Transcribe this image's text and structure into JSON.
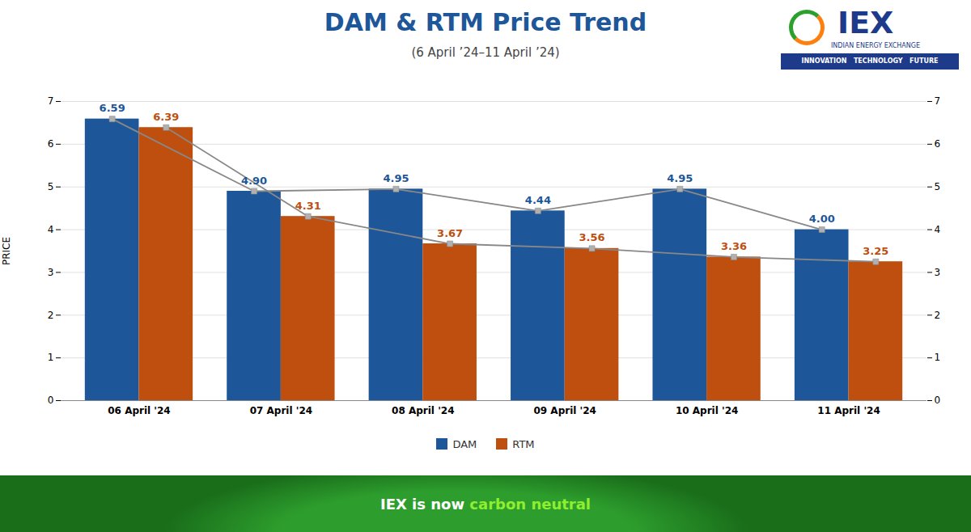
{
  "chart_data": {
    "type": "bar",
    "title": "DAM & RTM Price Trend",
    "subtitle": "(6 April ’24–11 April ’24)",
    "categories": [
      "06 April '24",
      "07 April '24",
      "08 April '24",
      "09 April '24",
      "10 April '24",
      "11 April '24"
    ],
    "series": [
      {
        "name": "DAM",
        "color": "#1e5799",
        "values": [
          6.59,
          4.9,
          4.95,
          4.44,
          4.95,
          4.0
        ],
        "value_labels": [
          "6.59",
          "4.90",
          "4.95",
          "4.44",
          "4.95",
          "4.00"
        ],
        "marker": "square",
        "line_style": "solid"
      },
      {
        "name": "RTM",
        "color": "#bf4f0f",
        "values": [
          6.39,
          4.31,
          3.67,
          3.56,
          3.36,
          3.25
        ],
        "value_labels": [
          "6.39",
          "4.31",
          "3.67",
          "3.56",
          "3.36",
          "3.25"
        ],
        "marker": "square",
        "line_style": "solid"
      }
    ],
    "ylabel": "PRICE",
    "ylim": [
      0,
      7
    ],
    "yticks": [
      0,
      1,
      2,
      3,
      4,
      5,
      6,
      7
    ],
    "y2lim": [
      0,
      7
    ],
    "y2ticks": [
      0,
      1,
      2,
      3,
      4,
      5,
      6,
      7
    ],
    "grid": true,
    "legend": "bottom",
    "data_labels": true,
    "annotations": [
      "IEX is now",
      "carbon neutral",
      "IEX",
      "INDIAN ENERGY EXCHANGE",
      "INNOVATION   TECHNOLOGY   FUTURE"
    ]
  }
}
